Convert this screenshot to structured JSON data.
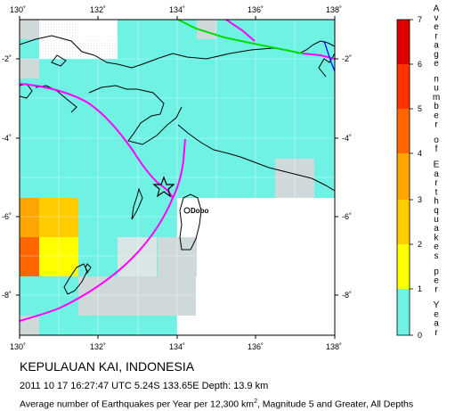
{
  "map": {
    "lon_range": [
      130,
      138
    ],
    "lat_range": [
      -9,
      -1
    ],
    "lon_ticks": [
      "130˚",
      "132˚",
      "134˚",
      "136˚",
      "138˚"
    ],
    "lat_ticks": [
      "-2˚",
      "-4˚",
      "-6˚",
      "-8˚"
    ],
    "place_label": "Dobo",
    "epicenter": {
      "lon": 133.65,
      "lat": -5.24
    },
    "colors": {
      "water": "#ffffff",
      "land_outline": "#000000",
      "plate_boundary": "#ff00ff",
      "fault_green": "#00dd00",
      "river_blue": "#0000ff"
    }
  },
  "legend": {
    "title": "Average number of Earthquakes per Year",
    "ticks": [
      "0",
      "1",
      "2",
      "3",
      "4",
      "5",
      "6",
      "7"
    ],
    "colors": {
      "0-1": "#6ff2e4",
      "1-2": "#ffff00",
      "2-3": "#ffcc00",
      "3-4": "#ffa500",
      "4-5": "#ff6600",
      "5-6": "#ff3300",
      "6-7": "#dd0000"
    }
  },
  "caption": {
    "title": "KEPULAUAN KAI, INDONESIA",
    "event": "2011 10 17 16:27:47 UTC 5.24S 133.65E Depth: 13.9 km",
    "description_prefix": "Average number of Earthquakes per Year per 12,300 km",
    "description_sup": "2",
    "description_suffix": ", Magnitude 5 and Greater, All Depths"
  }
}
